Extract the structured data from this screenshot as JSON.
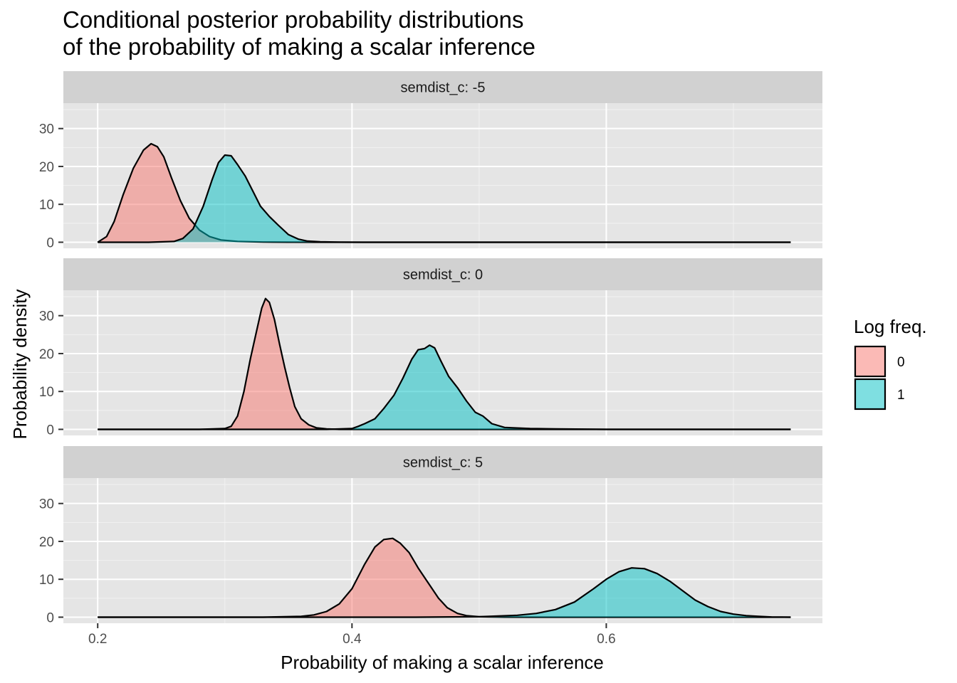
{
  "chart_data": {
    "type": "area",
    "title_lines": [
      "Conditional posterior probability distributions",
      "of the probability of making a scalar inference"
    ],
    "xlabel": "Probability of making a scalar inference",
    "ylabel": "Probability density",
    "xlim": [
      0.173,
      0.77
    ],
    "ylim": [
      -1.6,
      36.7
    ],
    "x_ticks": [
      0.2,
      0.4,
      0.6
    ],
    "x_tick_labels": [
      "0.2",
      "0.4",
      "0.6"
    ],
    "y_ticks": [
      0,
      10,
      20,
      30
    ],
    "y_tick_labels": [
      "0",
      "10",
      "20",
      "30"
    ],
    "grid": true,
    "legend": {
      "title": "Log freq.",
      "position": "right",
      "entries": [
        {
          "label": "0",
          "color": "#F8766D"
        },
        {
          "label": "1",
          "color": "#00BFC4"
        }
      ]
    },
    "colors": {
      "panel_background": "#E5E5E5",
      "strip_background": "#D1D1D1",
      "series_0": "#F8766D",
      "series_1": "#00BFC4"
    },
    "facets": [
      {
        "strip_label": "semdist_c: -5",
        "series": [
          {
            "name": "0",
            "x": [
              0.2,
              0.207,
              0.213,
              0.22,
              0.228,
              0.236,
              0.242,
              0.247,
              0.252,
              0.258,
              0.265,
              0.272,
              0.28,
              0.288,
              0.297,
              0.31,
              0.33,
              0.35,
              0.4,
              0.5,
              0.6,
              0.7,
              0.745
            ],
            "y": [
              0,
              1.5,
              5.5,
              12.5,
              19.5,
              24.3,
              26.0,
              25.2,
              22.5,
              17.0,
              11.0,
              6.3,
              3.2,
              1.5,
              0.6,
              0.2,
              0.05,
              0.02,
              0,
              0,
              0,
              0,
              0
            ]
          },
          {
            "name": "1",
            "x": [
              0.2,
              0.24,
              0.26,
              0.267,
              0.275,
              0.283,
              0.29,
              0.295,
              0.3,
              0.305,
              0.31,
              0.316,
              0.322,
              0.328,
              0.335,
              0.342,
              0.35,
              0.358,
              0.365,
              0.375,
              0.39,
              0.41,
              0.5,
              0.6,
              0.7,
              0.745
            ],
            "y": [
              0,
              0,
              0.2,
              1.0,
              3.5,
              9.5,
              16.5,
              21.0,
              23.0,
              22.8,
              20.5,
              17.5,
              13.5,
              9.5,
              6.8,
              4.5,
              2.0,
              0.8,
              0.3,
              0.1,
              0.02,
              0,
              0,
              0,
              0,
              0
            ]
          }
        ]
      },
      {
        "strip_label": "semdist_c: 0",
        "series": [
          {
            "name": "0",
            "x": [
              0.2,
              0.28,
              0.3,
              0.305,
              0.31,
              0.315,
              0.32,
              0.325,
              0.329,
              0.332,
              0.335,
              0.339,
              0.343,
              0.347,
              0.351,
              0.355,
              0.36,
              0.366,
              0.372,
              0.38,
              0.39,
              0.4,
              0.5,
              0.6,
              0.7,
              0.745
            ],
            "y": [
              0,
              0,
              0.2,
              0.8,
              3.5,
              10.0,
              18.5,
              26.0,
              32.0,
              34.5,
              33.5,
              29.0,
              22.5,
              16.5,
              11.0,
              6.0,
              2.8,
              1.2,
              0.4,
              0.1,
              0,
              0,
              0,
              0,
              0,
              0
            ]
          },
          {
            "name": "1",
            "x": [
              0.2,
              0.38,
              0.4,
              0.405,
              0.41,
              0.418,
              0.425,
              0.433,
              0.44,
              0.447,
              0.452,
              0.457,
              0.461,
              0.465,
              0.47,
              0.476,
              0.483,
              0.49,
              0.497,
              0.503,
              0.51,
              0.52,
              0.54,
              0.56,
              0.6,
              0.7,
              0.745
            ],
            "y": [
              0,
              0,
              0.2,
              0.8,
              1.5,
              2.8,
              5.5,
              9.0,
              13.5,
              18.5,
              21.0,
              21.3,
              22.2,
              21.5,
              18.0,
              14.0,
              11.0,
              7.5,
              4.5,
              3.5,
              1.5,
              0.5,
              0.2,
              0.1,
              0,
              0,
              0
            ]
          }
        ]
      },
      {
        "strip_label": "semdist_c: 5",
        "series": [
          {
            "name": "0",
            "x": [
              0.2,
              0.33,
              0.36,
              0.37,
              0.38,
              0.39,
              0.4,
              0.41,
              0.418,
              0.425,
              0.432,
              0.438,
              0.445,
              0.452,
              0.46,
              0.468,
              0.475,
              0.483,
              0.49,
              0.5,
              0.52,
              0.54,
              0.6,
              0.7,
              0.745
            ],
            "y": [
              0,
              0,
              0.2,
              0.6,
              1.5,
              3.5,
              7.5,
              14.0,
              18.5,
              20.5,
              20.8,
              19.5,
              17.0,
              13.0,
              9.0,
              5.0,
              2.5,
              1.0,
              0.4,
              0.1,
              0.02,
              0,
              0,
              0,
              0
            ]
          },
          {
            "name": "1",
            "x": [
              0.2,
              0.45,
              0.5,
              0.53,
              0.545,
              0.56,
              0.575,
              0.59,
              0.6,
              0.61,
              0.62,
              0.63,
              0.64,
              0.65,
              0.66,
              0.67,
              0.68,
              0.69,
              0.7,
              0.71,
              0.72,
              0.73,
              0.745
            ],
            "y": [
              0,
              0,
              0.1,
              0.5,
              1.0,
              2.0,
              4.0,
              7.5,
              10.0,
              12.0,
              13.0,
              12.8,
              11.5,
              9.5,
              7.0,
              4.5,
              2.8,
              1.5,
              0.8,
              0.4,
              0.2,
              0.05,
              0
            ]
          }
        ]
      }
    ]
  }
}
